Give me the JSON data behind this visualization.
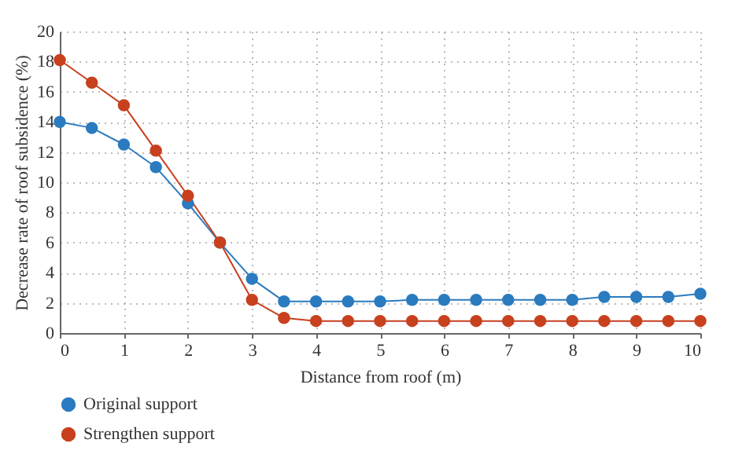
{
  "chart_data": {
    "type": "line",
    "xlabel": "Distance from roof (m)",
    "ylabel": "Decrease rate of roof subsidence (%)",
    "x": [
      0,
      0.5,
      1,
      1.5,
      2,
      2.5,
      3,
      3.5,
      4,
      4.5,
      5,
      5.5,
      6,
      6.5,
      7,
      7.5,
      8,
      8.5,
      9,
      9.5,
      10
    ],
    "series": [
      {
        "name": "Original support",
        "color": "#2a7bbf",
        "values": [
          14,
          13.6,
          12.5,
          11,
          8.6,
          6,
          3.6,
          2.1,
          2.1,
          2.1,
          2.1,
          2.2,
          2.2,
          2.2,
          2.2,
          2.2,
          2.2,
          2.4,
          2.4,
          2.4,
          2.6
        ]
      },
      {
        "name": "Strengthen support",
        "color": "#c8401e",
        "values": [
          18.1,
          16.6,
          15.1,
          12.1,
          9.1,
          6,
          2.2,
          1,
          0.8,
          0.8,
          0.8,
          0.8,
          0.8,
          0.8,
          0.8,
          0.8,
          0.8,
          0.8,
          0.8,
          0.8,
          0.8
        ]
      }
    ],
    "xlim": [
      0,
      10
    ],
    "xticks": [
      0,
      1,
      2,
      3,
      4,
      5,
      6,
      7,
      8,
      9,
      10
    ],
    "ylim": [
      0,
      20
    ],
    "yticks": [
      0,
      2,
      4,
      6,
      8,
      10,
      12,
      14,
      16,
      18,
      20
    ],
    "grid": true,
    "legend": "bottom left",
    "marker": "circle",
    "line_style": "solid"
  }
}
